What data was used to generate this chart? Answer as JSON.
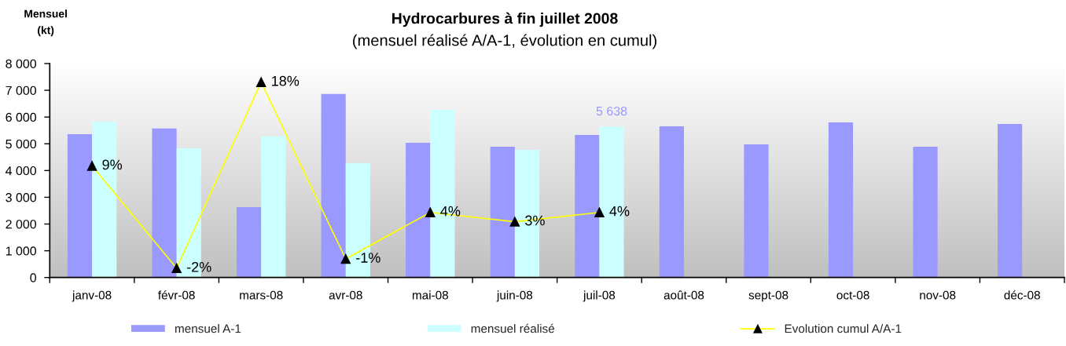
{
  "chart_data": {
    "type": "bar",
    "title": "Hydrocarbures à fin juillet 2008",
    "subtitle": "(mensuel réalisé A/A-1, évolution en cumul)",
    "ylabel": "Mensuel\n(kt)",
    "categories": [
      "janv-08",
      "févr-08",
      "mars-08",
      "avr-08",
      "mai-08",
      "juin-08",
      "juil-08",
      "août-08",
      "sept-08",
      "oct-08",
      "nov-08",
      "déc-08"
    ],
    "series": [
      {
        "name": "mensuel A-1",
        "color": "#9999ff",
        "values": [
          5360,
          5570,
          2630,
          6860,
          5040,
          4890,
          5330,
          5650,
          4980,
          5800,
          4890,
          5740
        ]
      },
      {
        "name": "mensuel réalisé",
        "color": "#ccffff",
        "values": [
          5820,
          4830,
          5280,
          4280,
          6270,
          4770,
          5638,
          null,
          null,
          null,
          null,
          null
        ],
        "value_labels": [
          null,
          null,
          null,
          null,
          null,
          null,
          "5 638",
          null,
          null,
          null,
          null,
          null
        ]
      },
      {
        "name": "Evolution cumul A/A-1",
        "type": "line",
        "axis": "y2",
        "color": "#ffff00",
        "values": [
          9,
          -2,
          18,
          -1,
          4,
          3,
          4,
          null,
          null,
          null,
          null,
          null
        ],
        "value_labels": [
          "9%",
          "-2%",
          "18%",
          "-1%",
          "4%",
          "3%",
          "4%",
          null,
          null,
          null,
          null,
          null
        ]
      }
    ],
    "ylim": [
      0,
      8000
    ],
    "yticks": [
      0,
      {
        "value": 1000,
        "label": "1 000"
      },
      {
        "value": 2000,
        "label": "2 000"
      },
      {
        "value": 3000,
        "label": "3 000"
      },
      {
        "value": 4000,
        "label": "4 000"
      },
      {
        "value": 5000,
        "label": "5 000"
      },
      {
        "value": 6000,
        "label": "6 000"
      },
      {
        "value": 7000,
        "label": "7 000"
      },
      {
        "value": 8000,
        "label": "8 000"
      }
    ],
    "y2lim": [
      -3,
      20
    ],
    "marker": "triangle",
    "legend": "bottom"
  }
}
